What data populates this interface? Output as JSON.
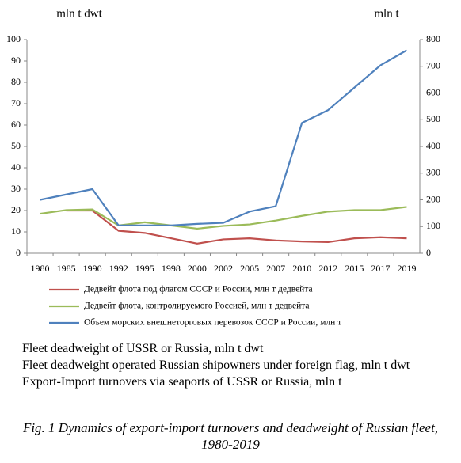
{
  "chart_data": {
    "type": "line",
    "y_label": "mln t dwt",
    "y2_label": "mln t",
    "categories": [
      "1980",
      "1985",
      "1990",
      "1992",
      "1995",
      "1998",
      "2000",
      "2002",
      "2005",
      "2007",
      "2010",
      "2012",
      "2015",
      "2017",
      "2019"
    ],
    "series": [
      {
        "name": "Дедвейт флота под флагом СССР и России, млн т дедвейта",
        "color": "#c0504d",
        "values": [
          null,
          20,
          20,
          10.5,
          9.5,
          7,
          4.5,
          6.5,
          7,
          6,
          5.5,
          5.2,
          7,
          7.5,
          7
        ]
      },
      {
        "name": "Дедвейт флота, контролируемого Россией, млн т дедвейта",
        "color": "#9bbb59",
        "values": [
          18.5,
          20.2,
          20.5,
          13,
          14.5,
          13,
          11.5,
          12.8,
          13.5,
          15.3,
          17.5,
          19.5,
          20.2,
          20.2,
          21.7
        ]
      },
      {
        "name": "Объем морских внешнеторговых перевозок СССР и России, млн т",
        "color": "#4f81bd",
        "axis": "y2",
        "values": [
          200,
          220,
          240,
          104,
          104,
          104,
          110,
          114,
          156,
          176,
          488,
          536,
          620,
          704,
          760
        ]
      }
    ],
    "ylim": [
      0,
      100
    ],
    "yticks": [
      0,
      10,
      20,
      30,
      40,
      50,
      60,
      70,
      80,
      90,
      100
    ],
    "y2lim": [
      0,
      800
    ],
    "y2ticks": [
      0,
      100,
      200,
      300,
      400,
      500,
      600,
      700,
      800
    ],
    "grid": false
  },
  "notes": [
    "Fleet deadweight of USSR or Russia, mln t dwt",
    "Fleet deadweight operated Russian shipowners under foreign flag, mln t dwt",
    "Export-Import turnovers via seaports of USSR or Russia, mln t"
  ],
  "caption": "Fig. 1 Dynamics of export-import turnovers and deadweight of Russian fleet, 1980-2019"
}
